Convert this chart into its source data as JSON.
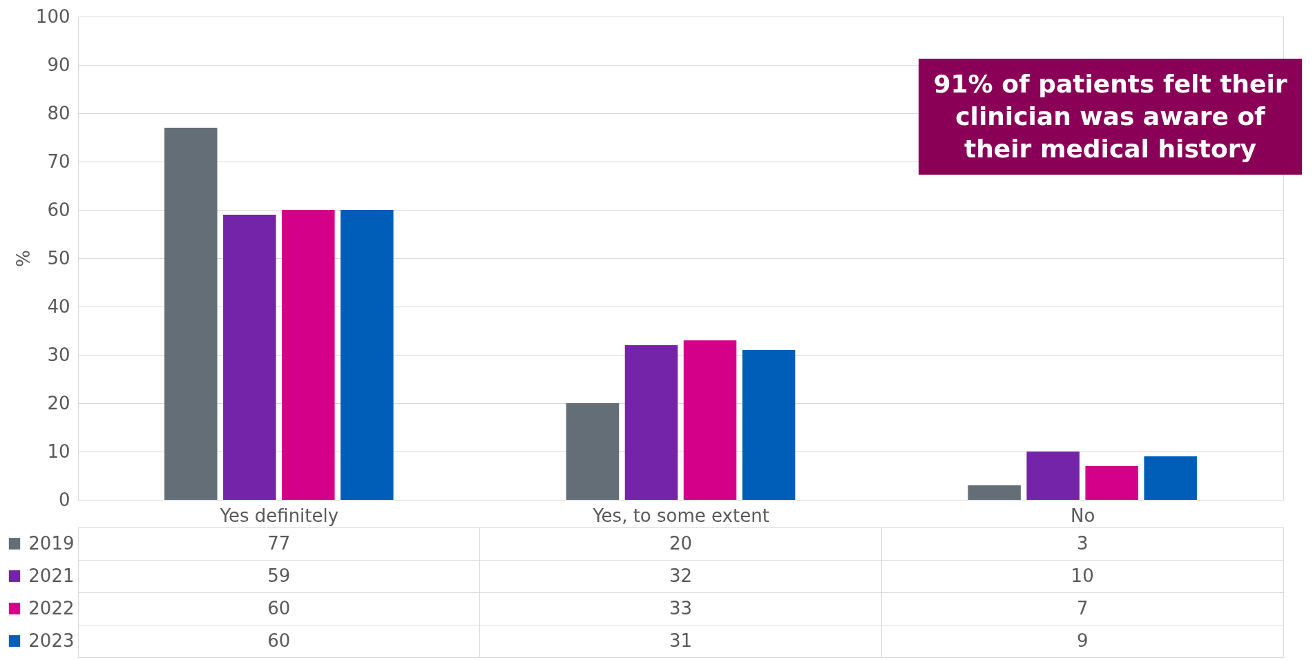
{
  "chart_data": {
    "type": "bar",
    "ylabel": "%",
    "categories": [
      "Yes definitely",
      "Yes, to some extent",
      "No"
    ],
    "series": [
      {
        "name": "2019",
        "color": "#636e77",
        "values": [
          77,
          20,
          3
        ]
      },
      {
        "name": "2021",
        "color": "#7324a8",
        "values": [
          59,
          32,
          10
        ]
      },
      {
        "name": "2022",
        "color": "#d5008a",
        "values": [
          60,
          33,
          7
        ]
      },
      {
        "name": "2023",
        "color": "#005eb8",
        "values": [
          60,
          31,
          9
        ]
      }
    ],
    "ylim": [
      0,
      100
    ],
    "yticks": [
      0,
      10,
      20,
      30,
      40,
      50,
      60,
      70,
      80,
      90,
      100
    ],
    "grid": "y",
    "data_labels": true,
    "legend": "bottom left",
    "annotations": [
      "91% of patients felt their clinician was aware of their medical history"
    ]
  }
}
